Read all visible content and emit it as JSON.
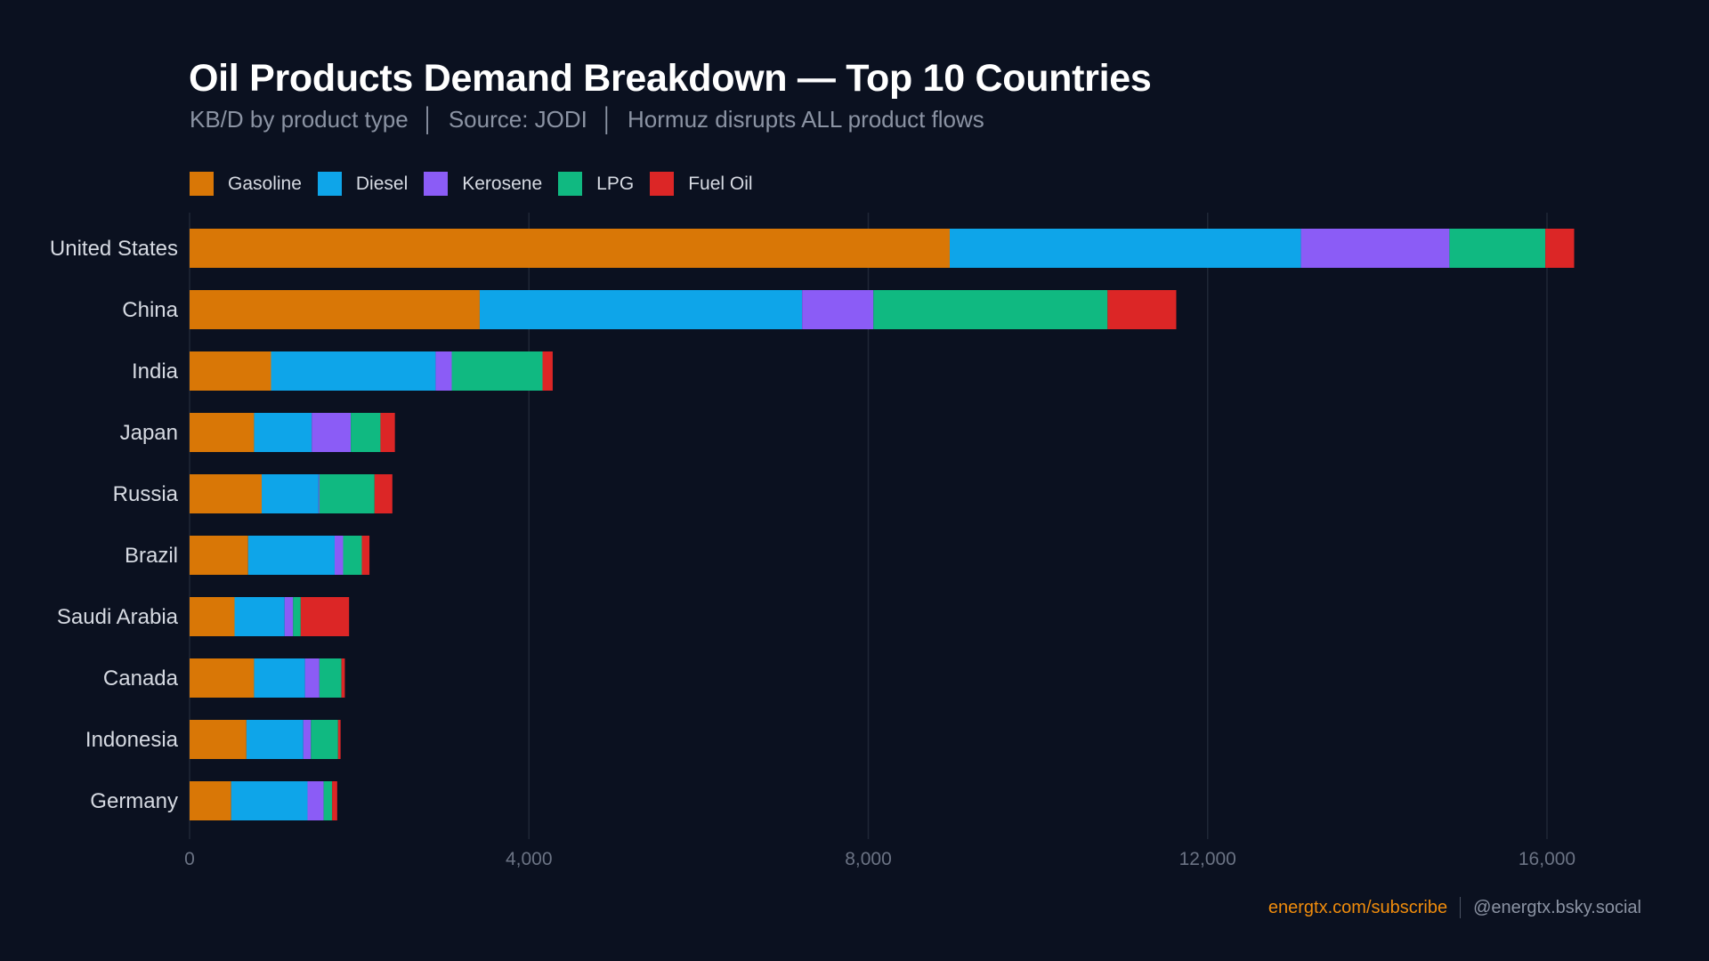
{
  "chart_data": {
    "type": "bar",
    "orientation": "horizontal",
    "stacked": true,
    "title": "Oil Products Demand Breakdown — Top 10 Countries",
    "subtitle": "KB/D by product type  │  Source: JODI  │  Hormuz disrupts ALL product flows",
    "xlabel": "",
    "ylabel": "",
    "xlim": [
      0,
      17500
    ],
    "xticks": [
      0,
      4000,
      8000,
      12000,
      16000
    ],
    "xtick_labels": [
      "0",
      "4,000",
      "8,000",
      "12,000",
      "16,000"
    ],
    "grid": "vertical",
    "legend_position": "top-left",
    "categories": [
      "United States",
      "China",
      "India",
      "Japan",
      "Russia",
      "Brazil",
      "Saudi Arabia",
      "Canada",
      "Indonesia",
      "Germany"
    ],
    "series": [
      {
        "name": "Gasoline",
        "color": "#d97706",
        "values": [
          8960,
          3420,
          960,
          760,
          850,
          690,
          530,
          760,
          670,
          490
        ]
      },
      {
        "name": "Diesel",
        "color": "#0ea5e9",
        "values": [
          4140,
          3800,
          1940,
          680,
          670,
          1020,
          590,
          600,
          670,
          900
        ]
      },
      {
        "name": "Kerosene",
        "color": "#8b5cf6",
        "values": [
          1750,
          840,
          190,
          460,
          10,
          100,
          100,
          170,
          90,
          190
        ]
      },
      {
        "name": "LPG",
        "color": "#10b981",
        "values": [
          1130,
          2760,
          1070,
          350,
          650,
          220,
          90,
          260,
          320,
          100
        ]
      },
      {
        "name": "Fuel Oil",
        "color": "#dc2626",
        "values": [
          340,
          810,
          120,
          170,
          210,
          90,
          570,
          40,
          30,
          60
        ]
      }
    ]
  },
  "footer": {
    "link": "energtx.com/subscribe",
    "handle": "@energtx.bsky.social"
  },
  "colors": {
    "background": "#0b1120",
    "grid": "#1f2736",
    "link": "#f08c0c"
  }
}
